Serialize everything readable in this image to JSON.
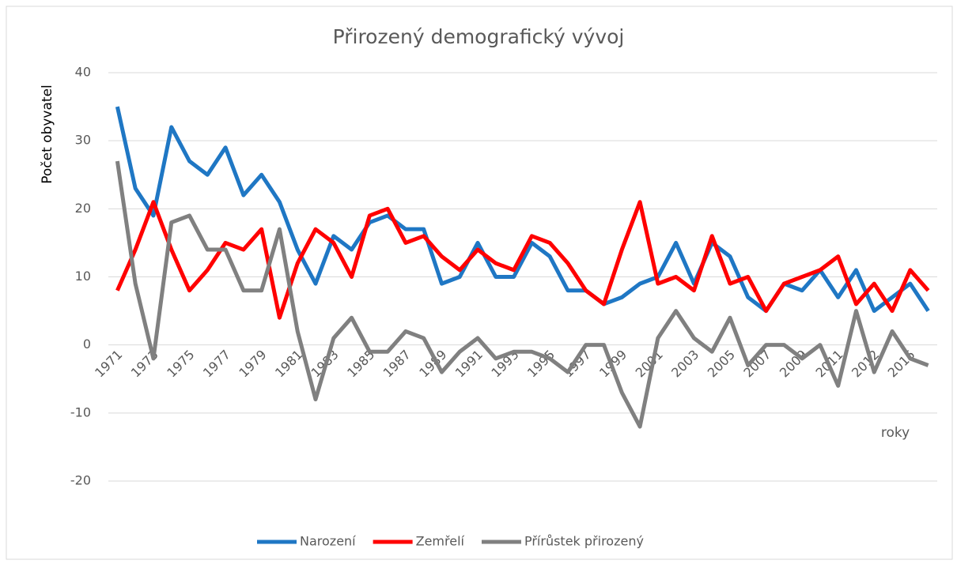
{
  "chart_data": {
    "type": "line",
    "title": "Přirozený demografický vývoj",
    "y_label": "Počet obyvatel",
    "x_label": "roky",
    "categories": [
      "1971",
      null,
      "1973",
      null,
      "1975",
      null,
      "1977",
      null,
      "1979",
      null,
      "1981",
      null,
      "1983",
      null,
      "1985",
      null,
      "1987",
      null,
      "1989",
      null,
      "1991",
      null,
      "1993",
      null,
      "1995",
      null,
      "1997",
      null,
      "1999",
      null,
      "2001",
      null,
      "2003",
      null,
      "2005",
      null,
      "2007",
      null,
      "2009",
      null,
      "2011",
      null,
      "2012",
      null,
      "2015",
      null
    ],
    "series": [
      {
        "name": "Narození",
        "color": "#1f77c4",
        "values": [
          35,
          23,
          19,
          32,
          27,
          25,
          29,
          22,
          25,
          21,
          14,
          9,
          16,
          14,
          18,
          19,
          17,
          17,
          9,
          10,
          15,
          10,
          10,
          15,
          13,
          8,
          8,
          6,
          7,
          9,
          10,
          15,
          9,
          15,
          13,
          7,
          5,
          9,
          8,
          11,
          7,
          11,
          5,
          7,
          9,
          5
        ]
      },
      {
        "name": "Zemřelí",
        "color": "#ff0000",
        "values": [
          8,
          14,
          21,
          14,
          8,
          11,
          15,
          14,
          17,
          4,
          12,
          17,
          15,
          10,
          19,
          20,
          15,
          16,
          13,
          11,
          14,
          12,
          11,
          16,
          15,
          12,
          8,
          6,
          14,
          21,
          9,
          10,
          8,
          16,
          9,
          10,
          5,
          9,
          10,
          11,
          13,
          6,
          9,
          5,
          11,
          8
        ]
      },
      {
        "name": "Přírůstek přirozený",
        "color": "#808080",
        "values": [
          27,
          9,
          -2,
          18,
          19,
          14,
          14,
          8,
          8,
          17,
          2,
          -8,
          1,
          4,
          -1,
          -1,
          2,
          1,
          -4,
          -1,
          1,
          -2,
          -1,
          -1,
          -2,
          -4,
          0,
          0,
          -7,
          -12,
          1,
          5,
          1,
          -1,
          4,
          -3,
          0,
          0,
          -2,
          0,
          -6,
          5,
          -4,
          2,
          -2,
          -3
        ]
      }
    ],
    "ylim": [
      -20,
      40
    ],
    "yticks": [
      -20,
      -10,
      0,
      10,
      20,
      30,
      40
    ],
    "grid": true,
    "legend": "bottom"
  }
}
